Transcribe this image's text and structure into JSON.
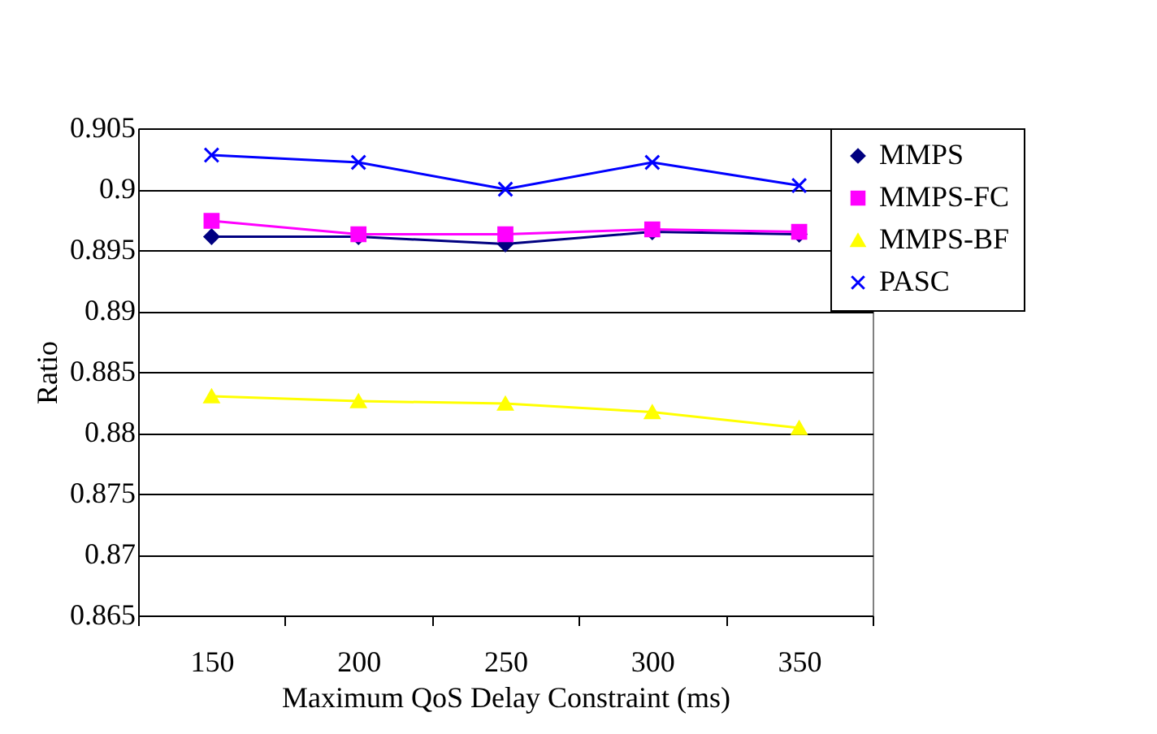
{
  "chart_data": {
    "type": "line",
    "xlabel": "Maximum QoS Delay Constraint (ms)",
    "ylabel": "Ratio",
    "categories": [
      "150",
      "200",
      "250",
      "300",
      "350"
    ],
    "ylim": [
      0.865,
      0.905
    ],
    "yticks": [
      0.865,
      0.87,
      0.875,
      0.88,
      0.885,
      0.89,
      0.895,
      0.9,
      0.905
    ],
    "grid": "y",
    "legend": "right",
    "series": [
      {
        "name": "MMPS",
        "color": "#000080",
        "marker": "diamond",
        "values": [
          0.8961,
          0.8961,
          0.8955,
          0.8965,
          0.8963
        ]
      },
      {
        "name": "MMPS-FC",
        "color": "#ff00ff",
        "marker": "square",
        "values": [
          0.8974,
          0.8963,
          0.8963,
          0.8967,
          0.8965
        ]
      },
      {
        "name": "MMPS-BF",
        "color": "#ffff00",
        "marker": "triangle",
        "values": [
          0.883,
          0.8826,
          0.8824,
          0.8817,
          0.8804
        ]
      },
      {
        "name": "PASC",
        "color": "#0000ff",
        "marker": "cross",
        "values": [
          0.9028,
          0.9022,
          0.9,
          0.9022,
          0.9003
        ]
      }
    ]
  }
}
